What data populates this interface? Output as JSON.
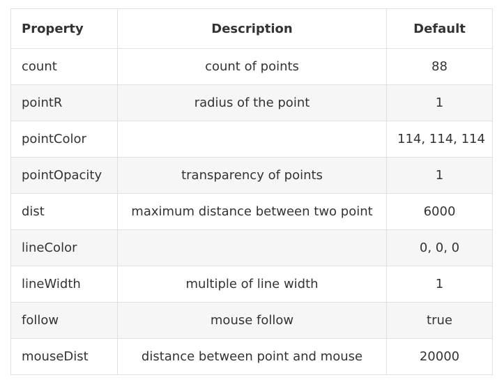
{
  "table": {
    "headers": {
      "property": "Property",
      "description": "Description",
      "default": "Default"
    },
    "rows": [
      {
        "property": "count",
        "description": "count of points",
        "default": "88"
      },
      {
        "property": "pointR",
        "description": "radius of the point",
        "default": "1"
      },
      {
        "property": "pointColor",
        "description": "",
        "default": "114, 114, 114"
      },
      {
        "property": "pointOpacity",
        "description": "transparency of points",
        "default": "1"
      },
      {
        "property": "dist",
        "description": "maximum distance between two point",
        "default": "6000"
      },
      {
        "property": "lineColor",
        "description": "",
        "default": "0, 0, 0"
      },
      {
        "property": "lineWidth",
        "description": "multiple of line width",
        "default": "1"
      },
      {
        "property": "follow",
        "description": "mouse follow",
        "default": "true"
      },
      {
        "property": "mouseDist",
        "description": "distance between point and mouse",
        "default": "20000"
      }
    ]
  },
  "colors": {
    "border": "#dfe2e5",
    "stripe": "#f6f6f6",
    "text": "#333333"
  }
}
